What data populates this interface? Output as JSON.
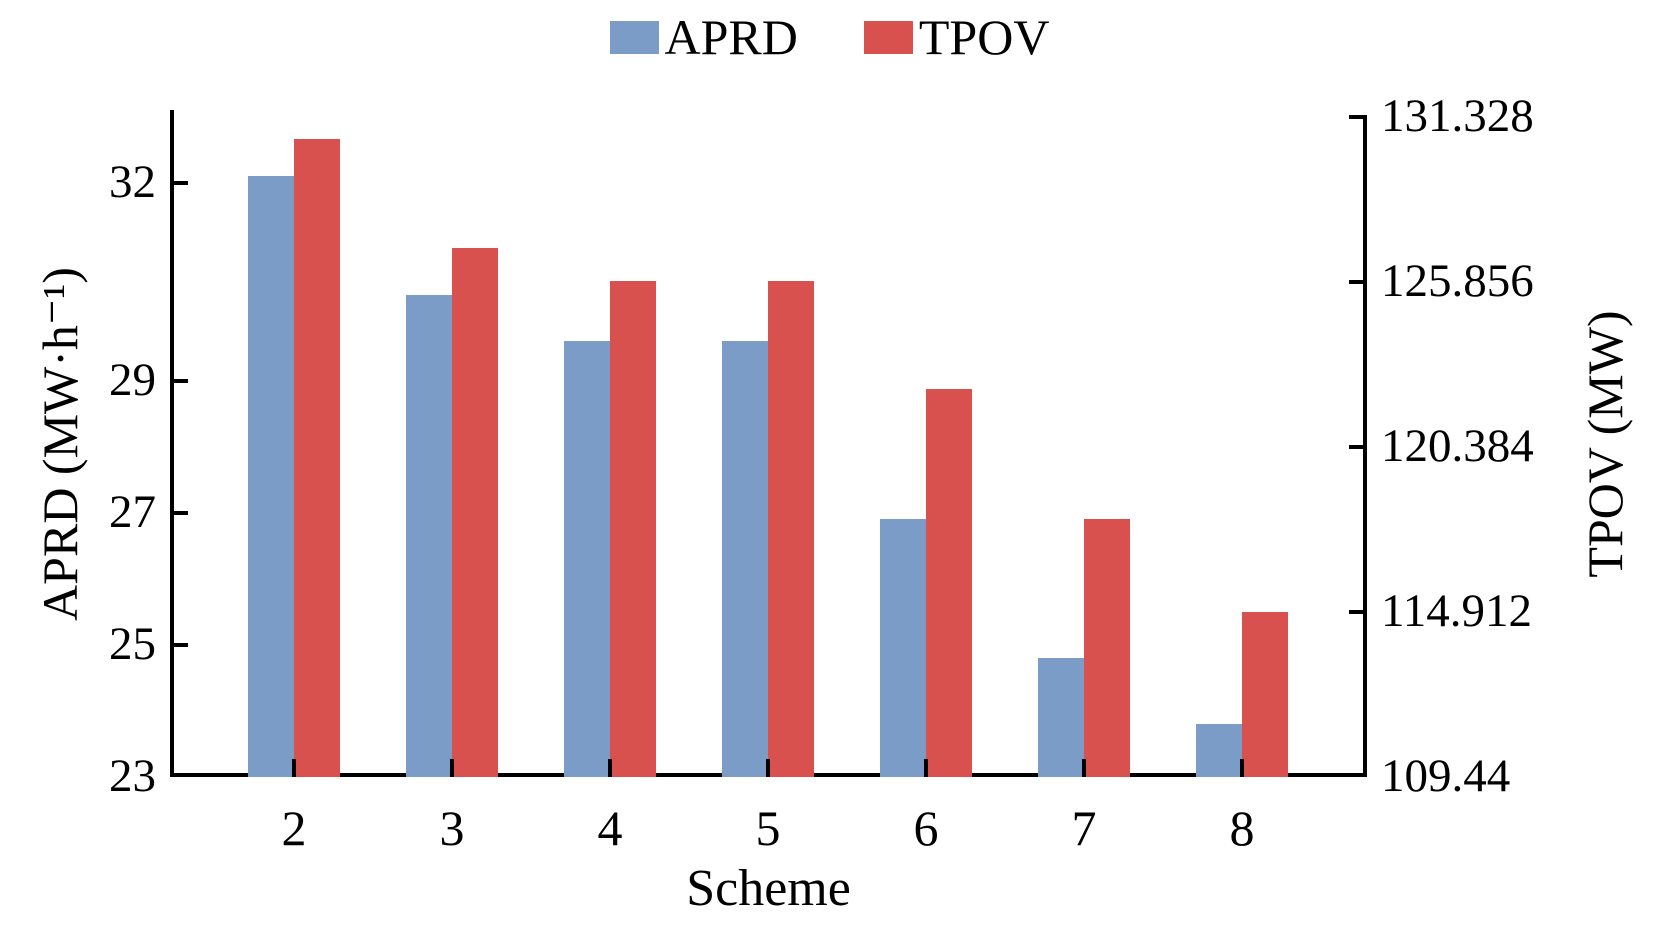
{
  "chart_data": {
    "type": "bar",
    "title": "",
    "xlabel": "Scheme",
    "categories": [
      "2",
      "3",
      "4",
      "5",
      "6",
      "7",
      "8"
    ],
    "series": [
      {
        "name": "APRD",
        "axis": "left",
        "color": "#7C9CC8",
        "values": [
          32.1,
          30.3,
          29.6,
          29.6,
          26.9,
          24.8,
          23.8
        ]
      },
      {
        "name": "TPOV",
        "axis": "right",
        "color": "#D8514E",
        "values": [
          130.6,
          127.0,
          125.9,
          125.9,
          122.3,
          118.0,
          114.9
        ]
      }
    ],
    "left_axis": {
      "label": "APRD (MW·h⁻¹)",
      "tick_labels": [
        "23",
        "25",
        "27",
        "29",
        "32"
      ],
      "tick_values": [
        23,
        25,
        27,
        29,
        32
      ],
      "range": [
        23,
        33.1
      ]
    },
    "right_axis": {
      "label": "TPOV (MW)",
      "tick_labels": [
        "109.44",
        "114.912",
        "120.384",
        "125.856",
        "131.328"
      ],
      "tick_values": [
        109.44,
        114.912,
        120.384,
        125.856,
        131.328
      ],
      "range": [
        109.44,
        131.56
      ]
    },
    "legend_position": "top-center",
    "grid": false,
    "background_color": "#ffffff",
    "axis_color": "#000000"
  }
}
